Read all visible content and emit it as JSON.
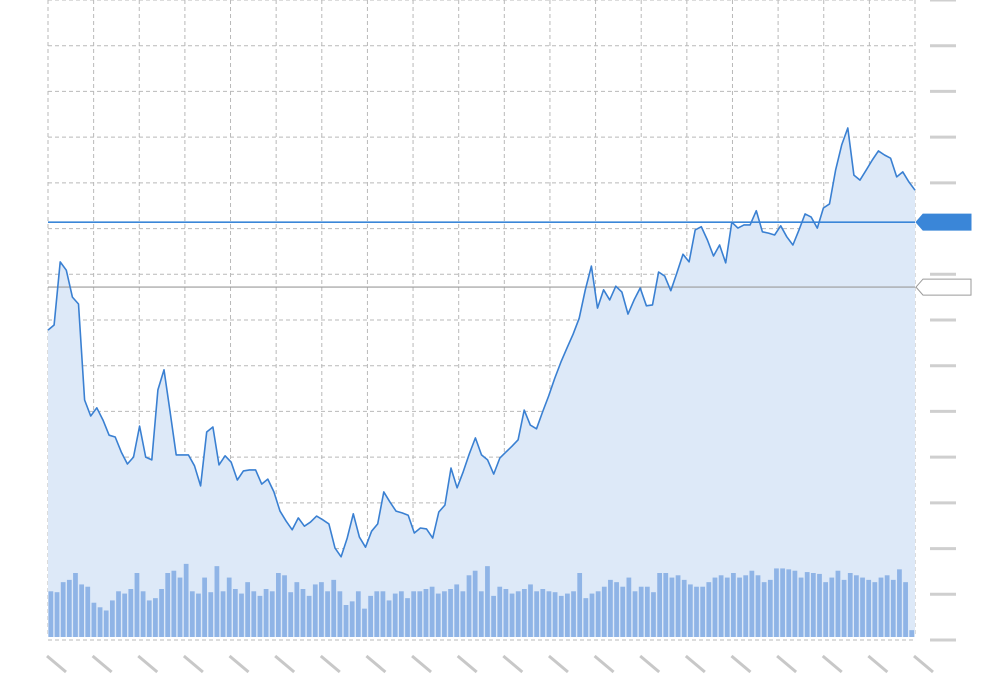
{
  "chart_data": [
    {
      "type": "line",
      "color": "#3a80d2",
      "fill": "#dde9f8",
      "ylim": [
        0,
        14
      ],
      "yticks": [
        0,
        1,
        2,
        3,
        4,
        5,
        6,
        7,
        8,
        9,
        10,
        11,
        12,
        13,
        14
      ],
      "grid": true,
      "reference_lines": [
        {
          "value": 9.14,
          "color": "#3a86d8"
        },
        {
          "value": 7.72,
          "color": "#9a9a9a"
        }
      ],
      "values": [
        6.78,
        6.89,
        8.27,
        8.09,
        7.5,
        7.35,
        5.25,
        4.9,
        5.08,
        4.81,
        4.48,
        4.44,
        4.11,
        3.85,
        4.0,
        4.68,
        4.0,
        3.94,
        5.47,
        5.91,
        4.99,
        4.05,
        4.05,
        4.05,
        3.81,
        3.37,
        4.55,
        4.66,
        3.83,
        4.03,
        3.89,
        3.5,
        3.7,
        3.72,
        3.72,
        3.41,
        3.52,
        3.24,
        2.82,
        2.6,
        2.41,
        2.67,
        2.49,
        2.58,
        2.71,
        2.63,
        2.54,
        2.01,
        1.82,
        2.23,
        2.76,
        2.25,
        2.03,
        2.38,
        2.54,
        3.24,
        3.02,
        2.82,
        2.78,
        2.73,
        2.34,
        2.45,
        2.43,
        2.23,
        2.8,
        2.95,
        3.76,
        3.33,
        3.68,
        4.07,
        4.42,
        4.05,
        3.94,
        3.63,
        3.98,
        4.11,
        4.24,
        4.38,
        5.03,
        4.7,
        4.62,
        4.99,
        5.34,
        5.73,
        6.08,
        6.39,
        6.69,
        7.04,
        7.66,
        8.18,
        7.26,
        7.66,
        7.44,
        7.74,
        7.61,
        7.13,
        7.44,
        7.7,
        7.31,
        7.33,
        8.05,
        7.96,
        7.64,
        8.03,
        8.44,
        8.27,
        8.97,
        9.04,
        8.75,
        8.4,
        8.64,
        8.25,
        9.14,
        9.01,
        9.08,
        9.08,
        9.39,
        8.93,
        8.9,
        8.86,
        9.06,
        8.82,
        8.64,
        8.97,
        9.32,
        9.25,
        9.01,
        9.45,
        9.54,
        10.28,
        10.83,
        11.2,
        10.17,
        10.06,
        10.28,
        10.5,
        10.7,
        10.61,
        10.54,
        10.13,
        10.24,
        10.02,
        9.84
      ]
    },
    {
      "type": "bar",
      "color": "#8fb4e6",
      "ylim": [
        0,
        14
      ],
      "values": [
        1.0,
        0.98,
        1.2,
        1.25,
        1.4,
        1.15,
        1.1,
        0.75,
        0.65,
        0.58,
        0.8,
        1.0,
        0.95,
        1.05,
        1.4,
        1.0,
        0.8,
        0.85,
        1.05,
        1.4,
        1.45,
        1.3,
        1.6,
        1.0,
        0.95,
        1.3,
        0.98,
        1.55,
        1.0,
        1.3,
        1.05,
        0.95,
        1.2,
        1.0,
        0.9,
        1.05,
        1.0,
        1.4,
        1.35,
        0.98,
        1.2,
        1.05,
        0.9,
        1.15,
        1.2,
        1.0,
        1.25,
        1.0,
        0.7,
        0.78,
        1.0,
        0.62,
        0.9,
        1.0,
        1.0,
        0.8,
        0.95,
        1.0,
        0.85,
        1.0,
        1.0,
        1.05,
        1.1,
        0.95,
        1.0,
        1.05,
        1.15,
        1.0,
        1.35,
        1.45,
        1.0,
        1.55,
        0.9,
        1.1,
        1.05,
        0.95,
        1.0,
        1.05,
        1.15,
        1.0,
        1.05,
        1.0,
        0.98,
        0.9,
        0.95,
        1.0,
        1.4,
        0.85,
        0.95,
        1.0,
        1.1,
        1.25,
        1.2,
        1.1,
        1.3,
        1.0,
        1.1,
        1.1,
        0.98,
        1.4,
        1.4,
        1.3,
        1.35,
        1.25,
        1.15,
        1.1,
        1.1,
        1.2,
        1.3,
        1.35,
        1.3,
        1.4,
        1.3,
        1.35,
        1.45,
        1.35,
        1.2,
        1.25,
        1.5,
        1.5,
        1.48,
        1.45,
        1.3,
        1.42,
        1.4,
        1.38,
        1.2,
        1.3,
        1.45,
        1.25,
        1.4,
        1.35,
        1.3,
        1.25,
        1.2,
        1.3,
        1.35,
        1.25,
        1.48,
        1.2,
        0.15
      ]
    }
  ]
}
